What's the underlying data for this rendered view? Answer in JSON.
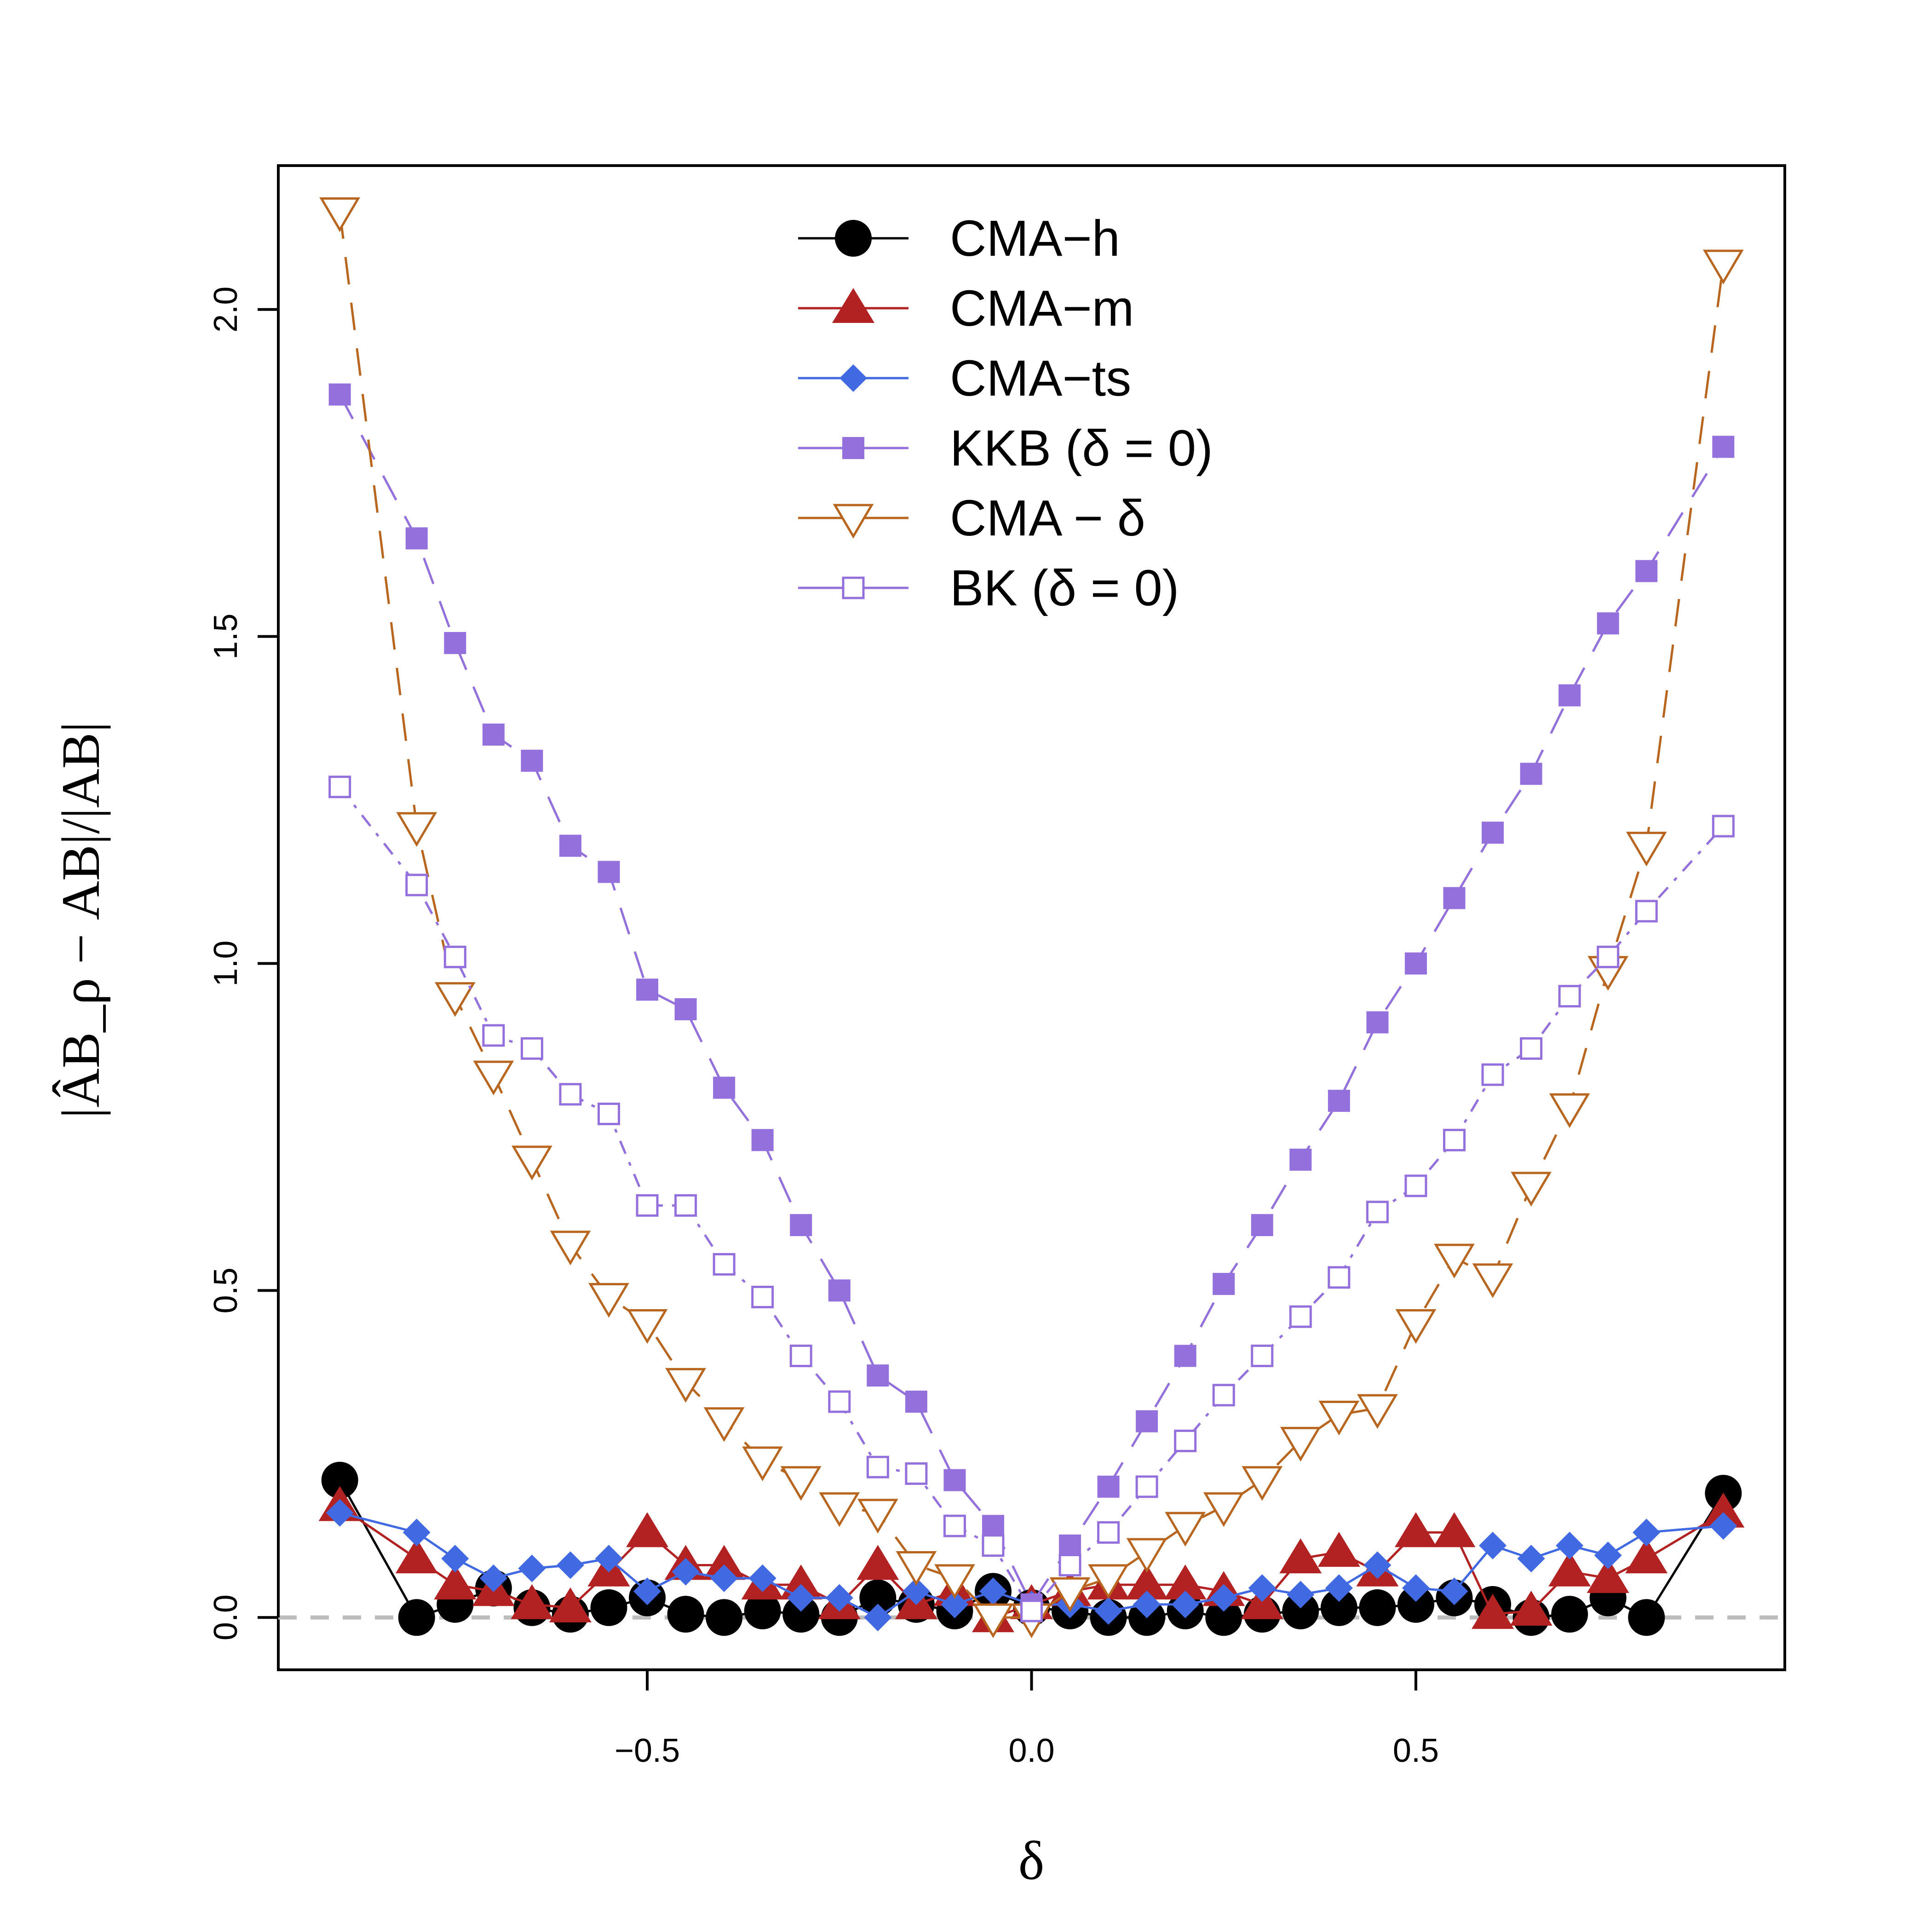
{
  "chart_data": {
    "type": "line",
    "xlabel": "δ",
    "ylabel": "|ÂB_ρ − AB|/|AB|",
    "xlim": [
      -0.98,
      0.98
    ],
    "ylim": [
      -0.08,
      2.22
    ],
    "xticks": [
      "−0.5",
      "0.0",
      "0.5"
    ],
    "xtick_values": [
      -0.5,
      0,
      0.5
    ],
    "yticks": [
      "0.0",
      "0.5",
      "1.0",
      "1.5",
      "2.0"
    ],
    "ytick_values": [
      0,
      0.5,
      1.0,
      1.5,
      2.0
    ],
    "reference_line": {
      "y": 0,
      "color": "#bdbdbd",
      "style": "dashed"
    },
    "legend_position": "top-center",
    "x": [
      -0.9,
      -0.8,
      -0.75,
      -0.7,
      -0.65,
      -0.6,
      -0.55,
      -0.5,
      -0.45,
      -0.4,
      -0.35,
      -0.3,
      -0.25,
      -0.2,
      -0.15,
      -0.1,
      -0.05,
      0,
      0.05,
      0.1,
      0.15,
      0.2,
      0.25,
      0.3,
      0.35,
      0.4,
      0.45,
      0.5,
      0.55,
      0.6,
      0.65,
      0.7,
      0.75,
      0.8,
      0.9
    ],
    "series": [
      {
        "name": "CMA−h",
        "color": "#000000",
        "marker": "circle",
        "values": [
          0.21,
          0.0,
          0.02,
          0.045,
          0.015,
          0.005,
          0.015,
          0.03,
          0.005,
          0.0,
          0.01,
          0.005,
          0.0,
          0.03,
          0.02,
          0.01,
          0.04,
          0.015,
          0.01,
          0.0,
          0.0,
          0.01,
          0.0,
          0.005,
          0.01,
          0.015,
          0.015,
          0.02,
          0.03,
          0.02,
          0.0,
          0.005,
          0.03,
          0.0,
          0.19
        ]
      },
      {
        "name": "CMA−m",
        "color": "#b22222",
        "marker": "triangle",
        "values": [
          0.17,
          0.09,
          0.05,
          0.04,
          0.02,
          0.015,
          0.07,
          0.13,
          0.08,
          0.08,
          0.05,
          0.05,
          0.02,
          0.08,
          0.02,
          0.04,
          0.0,
          0.02,
          0.04,
          0.05,
          0.05,
          0.05,
          0.04,
          0.02,
          0.09,
          0.1,
          0.07,
          0.13,
          0.13,
          0.005,
          0.01,
          0.07,
          0.06,
          0.09,
          0.16
        ]
      },
      {
        "name": "CMA−ts",
        "color": "#4169e1",
        "marker": "diamond",
        "values": [
          0.16,
          0.13,
          0.09,
          0.06,
          0.075,
          0.08,
          0.09,
          0.04,
          0.07,
          0.06,
          0.06,
          0.03,
          0.03,
          0.0,
          0.04,
          0.02,
          0.04,
          0.02,
          0.02,
          0.01,
          0.02,
          0.02,
          0.03,
          0.045,
          0.035,
          0.045,
          0.08,
          0.045,
          0.04,
          0.11,
          0.09,
          0.11,
          0.095,
          0.13,
          0.14
        ]
      },
      {
        "name": "KKB (δ = 0)",
        "color": "#9370db",
        "marker": "square-filled",
        "values": [
          1.87,
          1.65,
          1.49,
          1.35,
          1.31,
          1.18,
          1.14,
          0.96,
          0.93,
          0.81,
          0.73,
          0.6,
          0.5,
          0.37,
          0.33,
          0.21,
          0.14,
          0.02,
          0.11,
          0.2,
          0.3,
          0.4,
          0.51,
          0.6,
          0.7,
          0.79,
          0.91,
          1.0,
          1.1,
          1.2,
          1.29,
          1.41,
          1.52,
          1.6,
          1.79
        ]
      },
      {
        "name": "CMA − δ",
        "color": "#b8651f",
        "marker": "triangle-down-open",
        "values": [
          2.15,
          1.21,
          0.95,
          0.83,
          0.7,
          0.57,
          0.49,
          0.45,
          0.36,
          0.3,
          0.24,
          0.21,
          0.17,
          0.16,
          0.08,
          0.06,
          0.0,
          0.0,
          0.04,
          0.06,
          0.1,
          0.14,
          0.17,
          0.21,
          0.27,
          0.31,
          0.32,
          0.45,
          0.55,
          0.52,
          0.66,
          0.78,
          0.99,
          1.18,
          2.07
        ]
      },
      {
        "name": "BK (δ = 0)",
        "color": "#9370db",
        "marker": "square-open",
        "values": [
          1.27,
          1.12,
          1.01,
          0.89,
          0.87,
          0.8,
          0.77,
          0.63,
          0.63,
          0.54,
          0.49,
          0.4,
          0.33,
          0.23,
          0.22,
          0.14,
          0.11,
          0.01,
          0.08,
          0.13,
          0.2,
          0.27,
          0.34,
          0.4,
          0.46,
          0.52,
          0.62,
          0.66,
          0.73,
          0.83,
          0.87,
          0.95,
          1.01,
          1.08,
          1.21
        ]
      }
    ]
  }
}
